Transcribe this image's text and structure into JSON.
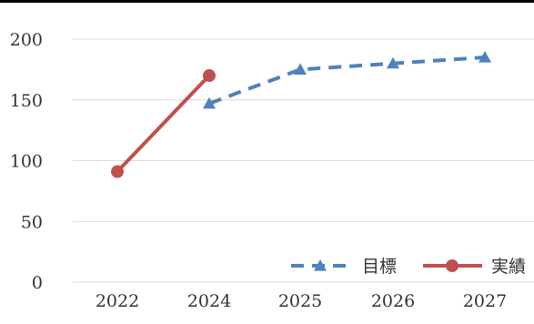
{
  "chart_data": {
    "type": "line",
    "categories": [
      "2022",
      "2024",
      "2025",
      "2026",
      "2027"
    ],
    "ylim": [
      0,
      200
    ],
    "yticks": [
      0,
      50,
      100,
      150,
      200
    ],
    "grid": true,
    "legend_position": "bottom-right",
    "series": [
      {
        "name": "目標",
        "values": [
          null,
          147,
          175,
          180,
          185
        ],
        "color": "#4f81bd",
        "line_style": "dashed",
        "marker": "triangle"
      },
      {
        "name": "実績",
        "values": [
          91,
          170,
          null,
          null,
          null
        ],
        "color": "#c0504d",
        "line_style": "solid",
        "marker": "circle"
      }
    ]
  }
}
